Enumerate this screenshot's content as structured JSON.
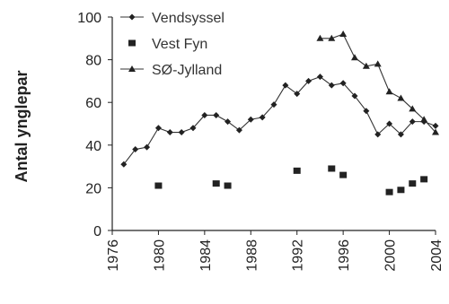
{
  "chart_data": {
    "type": "line",
    "ylabel": "Antal ynglepar",
    "xlabel": "",
    "xlim": [
      1976,
      2004
    ],
    "ylim": [
      0,
      100
    ],
    "x_ticks": [
      "1976",
      "1980",
      "1984",
      "1988",
      "1992",
      "1996",
      "2000",
      "2004"
    ],
    "y_ticks": [
      "0",
      "20",
      "40",
      "60",
      "80",
      "100"
    ],
    "grid": false,
    "legend_position": "top-center",
    "series": [
      {
        "name": "Vendsyssel",
        "marker": "diamond",
        "line": true,
        "points": [
          [
            1977,
            31
          ],
          [
            1978,
            38
          ],
          [
            1979,
            39
          ],
          [
            1980,
            48
          ],
          [
            1981,
            46
          ],
          [
            1982,
            46
          ],
          [
            1983,
            48
          ],
          [
            1984,
            54
          ],
          [
            1985,
            54
          ],
          [
            1986,
            51
          ],
          [
            1987,
            47
          ],
          [
            1988,
            52
          ],
          [
            1989,
            53
          ],
          [
            1990,
            59
          ],
          [
            1991,
            68
          ],
          [
            1992,
            64
          ],
          [
            1993,
            70
          ],
          [
            1994,
            72
          ],
          [
            1995,
            68
          ],
          [
            1996,
            69
          ],
          [
            1997,
            63
          ],
          [
            1998,
            56
          ],
          [
            1999,
            45
          ],
          [
            2000,
            50
          ],
          [
            2001,
            45
          ],
          [
            2002,
            51
          ],
          [
            2003,
            51
          ],
          [
            2004,
            49
          ]
        ]
      },
      {
        "name": "Vest Fyn",
        "marker": "square",
        "line": false,
        "points": [
          [
            1980,
            21
          ],
          [
            1985,
            22
          ],
          [
            1986,
            21
          ],
          [
            1992,
            28
          ],
          [
            1995,
            29
          ],
          [
            1996,
            26
          ],
          [
            2000,
            18
          ],
          [
            2001,
            19
          ],
          [
            2002,
            22
          ],
          [
            2003,
            24
          ]
        ]
      },
      {
        "name": "SØ-Jylland",
        "marker": "triangle",
        "line": true,
        "points": [
          [
            1994,
            90
          ],
          [
            1995,
            90
          ],
          [
            1996,
            92
          ],
          [
            1997,
            81
          ],
          [
            1998,
            77
          ],
          [
            1999,
            78
          ],
          [
            2000,
            65
          ],
          [
            2001,
            62
          ],
          [
            2002,
            57
          ],
          [
            2003,
            52
          ],
          [
            2004,
            46
          ]
        ]
      }
    ]
  }
}
